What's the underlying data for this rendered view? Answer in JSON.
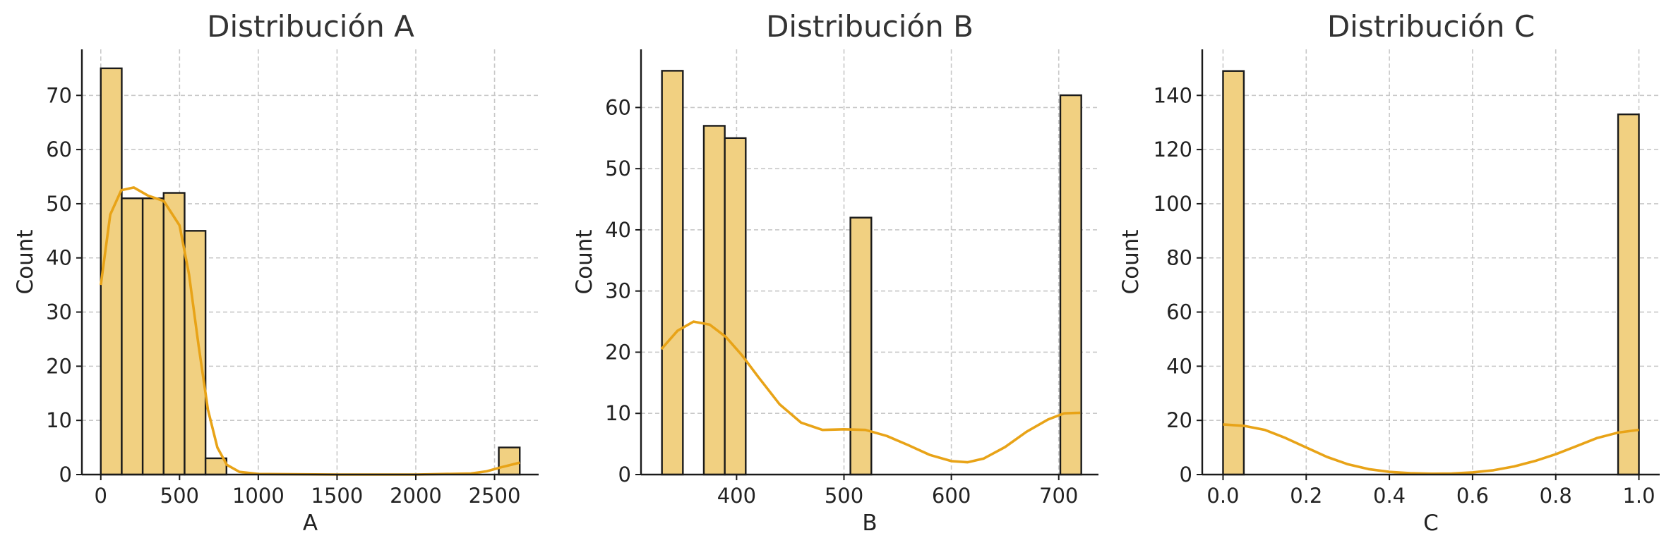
{
  "colors": {
    "bar_fill": "#f1d081",
    "bar_edge": "#1a1a1a",
    "kde_line": "#e8a317",
    "grid": "#c8c8c8",
    "axis": "#1a1a1a"
  },
  "chart_data": [
    {
      "type": "bar",
      "title": "Distribución A",
      "xlabel": "A",
      "ylabel": "Count",
      "xlim": [
        -120,
        2780
      ],
      "ylim": [
        0,
        78.5
      ],
      "xticks": [
        0,
        500,
        1000,
        1500,
        2000,
        2500
      ],
      "yticks": [
        0,
        10,
        20,
        30,
        40,
        50,
        60,
        70
      ],
      "grid": true,
      "bin_width": 133,
      "bins": [
        {
          "x0": 0,
          "count": 75
        },
        {
          "x0": 133,
          "count": 51
        },
        {
          "x0": 266,
          "count": 51
        },
        {
          "x0": 399,
          "count": 52
        },
        {
          "x0": 532,
          "count": 45
        },
        {
          "x0": 665,
          "count": 3
        },
        {
          "x0": 2527,
          "count": 5
        }
      ],
      "kde": [
        [
          0,
          35
        ],
        [
          60,
          48
        ],
        [
          130,
          52.5
        ],
        [
          210,
          53
        ],
        [
          300,
          51.5
        ],
        [
          400,
          50.5
        ],
        [
          500,
          46
        ],
        [
          560,
          37
        ],
        [
          620,
          24
        ],
        [
          680,
          12
        ],
        [
          740,
          5
        ],
        [
          800,
          1.8
        ],
        [
          880,
          0.5
        ],
        [
          1000,
          0.1
        ],
        [
          1500,
          0
        ],
        [
          2000,
          0
        ],
        [
          2350,
          0.2
        ],
        [
          2450,
          0.6
        ],
        [
          2550,
          1.4
        ],
        [
          2660,
          2.2
        ]
      ]
    },
    {
      "type": "bar",
      "title": "Distribución B",
      "xlabel": "B",
      "ylabel": "Count",
      "xlim": [
        311,
        737
      ],
      "ylim": [
        0,
        69.5
      ],
      "xticks": [
        400,
        500,
        600,
        700
      ],
      "yticks": [
        0,
        10,
        20,
        30,
        40,
        50,
        60
      ],
      "grid": true,
      "bin_width": 19.5,
      "bins": [
        {
          "x0": 330.5,
          "count": 66
        },
        {
          "x0": 369.5,
          "count": 57
        },
        {
          "x0": 389,
          "count": 55
        },
        {
          "x0": 506,
          "count": 42
        },
        {
          "x0": 701.5,
          "count": 62
        }
      ],
      "kde": [
        [
          330,
          20.5
        ],
        [
          345,
          23.5
        ],
        [
          360,
          25
        ],
        [
          375,
          24.5
        ],
        [
          390,
          22.5
        ],
        [
          405,
          19.5
        ],
        [
          420,
          16
        ],
        [
          440,
          11.5
        ],
        [
          460,
          8.5
        ],
        [
          480,
          7.3
        ],
        [
          500,
          7.4
        ],
        [
          520,
          7.3
        ],
        [
          540,
          6.3
        ],
        [
          560,
          4.8
        ],
        [
          580,
          3.2
        ],
        [
          600,
          2.2
        ],
        [
          615,
          2
        ],
        [
          630,
          2.6
        ],
        [
          650,
          4.5
        ],
        [
          670,
          7
        ],
        [
          690,
          9
        ],
        [
          705,
          10
        ],
        [
          720,
          10.1
        ]
      ]
    },
    {
      "type": "bar",
      "title": "Distribución C",
      "xlabel": "C",
      "ylabel": "Count",
      "xlim": [
        -0.05,
        1.05
      ],
      "ylim": [
        0,
        157
      ],
      "xticks": [
        0.0,
        0.2,
        0.4,
        0.6,
        0.8,
        1.0
      ],
      "xtick_labels": [
        "0.0",
        "0.2",
        "0.4",
        "0.6",
        "0.8",
        "1.0"
      ],
      "yticks": [
        0,
        20,
        40,
        60,
        80,
        100,
        120,
        140
      ],
      "grid": true,
      "bin_width": 0.05,
      "bins": [
        {
          "x0": 0.0,
          "count": 149
        },
        {
          "x0": 0.95,
          "count": 133
        }
      ],
      "kde": [
        [
          0,
          18.5
        ],
        [
          0.05,
          18
        ],
        [
          0.1,
          16.5
        ],
        [
          0.15,
          13.5
        ],
        [
          0.2,
          10
        ],
        [
          0.25,
          6.5
        ],
        [
          0.3,
          3.8
        ],
        [
          0.35,
          2
        ],
        [
          0.4,
          1
        ],
        [
          0.45,
          0.5
        ],
        [
          0.5,
          0.3
        ],
        [
          0.55,
          0.4
        ],
        [
          0.6,
          0.8
        ],
        [
          0.65,
          1.6
        ],
        [
          0.7,
          3
        ],
        [
          0.75,
          5
        ],
        [
          0.8,
          7.5
        ],
        [
          0.85,
          10.5
        ],
        [
          0.9,
          13.5
        ],
        [
          0.95,
          15.5
        ],
        [
          1.0,
          16.5
        ]
      ]
    }
  ]
}
